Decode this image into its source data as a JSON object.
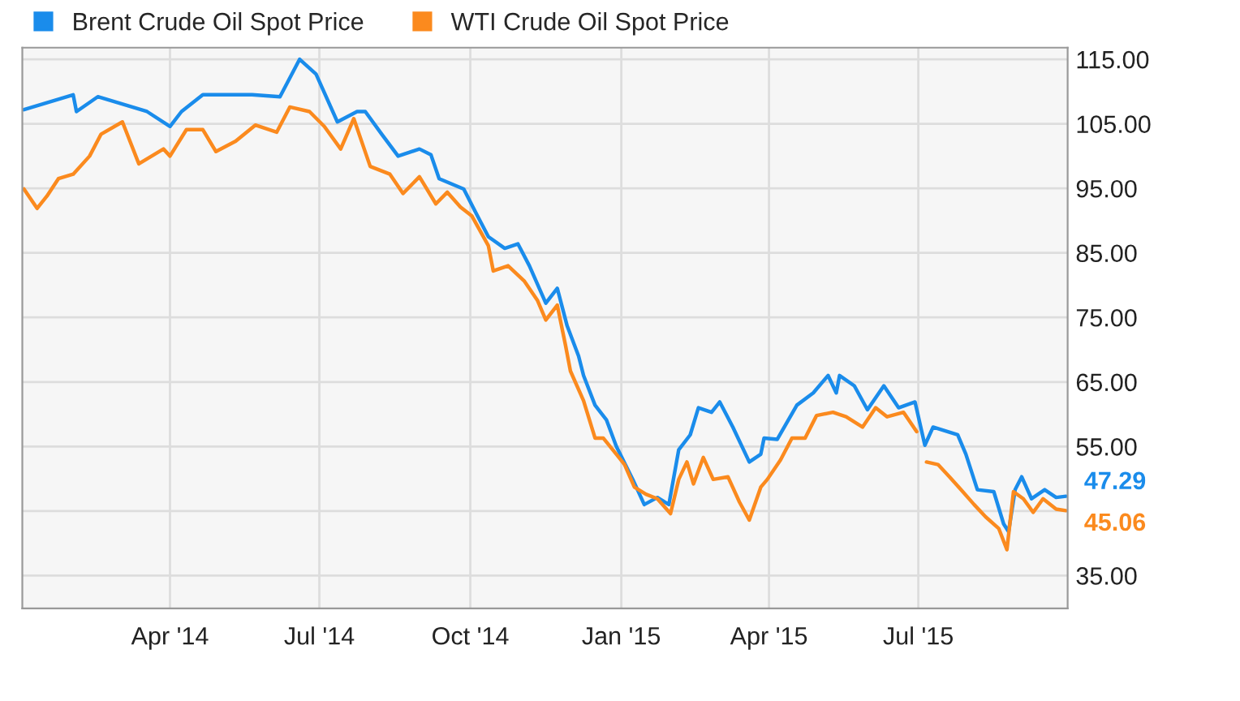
{
  "chart_data": {
    "type": "line",
    "series": [
      {
        "name": "Brent Crude Oil Spot Price",
        "color": "#1a8ceb",
        "x": [
          "2014-01-02",
          "2014-02-01",
          "2014-02-03",
          "2014-02-16",
          "2014-03-18",
          "2014-04-01",
          "2014-04-08",
          "2014-04-21",
          "2014-05-21",
          "2014-06-07",
          "2014-06-19",
          "2014-06-29",
          "2014-07-12",
          "2014-07-24",
          "2014-07-29",
          "2014-08-08",
          "2014-08-18",
          "2014-08-31",
          "2014-09-07",
          "2014-09-12",
          "2014-09-27",
          "2014-10-04",
          "2014-10-12",
          "2014-10-22",
          "2014-10-30",
          "2014-11-06",
          "2014-11-16",
          "2014-11-23",
          "2014-11-29",
          "2014-12-06",
          "2014-12-09",
          "2014-12-16",
          "2014-12-23",
          "2014-12-29",
          "2015-01-08",
          "2015-01-15",
          "2015-01-23",
          "2015-01-30",
          "2015-02-05",
          "2015-02-12",
          "2015-02-17",
          "2015-02-25",
          "2015-03-02",
          "2015-03-10",
          "2015-03-20",
          "2015-03-27",
          "2015-03-29",
          "2015-04-06",
          "2015-04-18",
          "2015-04-28",
          "2015-05-07",
          "2015-05-12",
          "2015-05-14",
          "2015-05-23",
          "2015-05-31",
          "2015-06-10",
          "2015-06-19",
          "2015-06-29",
          "2015-07-05",
          "2015-07-10",
          "2015-07-25",
          "2015-07-30",
          "2015-08-06",
          "2015-08-16",
          "2015-08-22",
          "2015-08-25",
          "2015-08-29",
          "2015-09-02",
          "2015-09-08",
          "2015-09-16",
          "2015-09-23",
          "2015-09-29"
        ],
        "values": [
          107.2,
          109.5,
          106.9,
          109.2,
          106.9,
          104.6,
          106.9,
          109.5,
          109.5,
          109.2,
          115,
          112.7,
          105.3,
          106.9,
          106.9,
          103.4,
          100,
          101.1,
          100.2,
          96.5,
          94.9,
          91.4,
          87.5,
          85.7,
          86.4,
          83,
          77.2,
          79.5,
          73.7,
          69,
          66,
          61.4,
          59.1,
          55,
          49.9,
          46,
          47.1,
          46,
          54.5,
          56.8,
          61,
          60.3,
          61.9,
          58,
          52.6,
          53.8,
          56.3,
          56.1,
          61.4,
          63.3,
          66,
          63.3,
          66,
          64.4,
          60.7,
          64.4,
          61,
          61.9,
          55.2,
          58,
          56.8,
          53.8,
          48.3,
          48,
          43,
          41.8,
          48.3,
          50.3,
          46.9,
          48.3,
          47.1,
          47.29
        ]
      },
      {
        "name": "WTI Crude Oil Spot Price",
        "color": "#fb8a1e",
        "x": [
          "2014-01-02",
          "2014-01-10",
          "2014-01-16",
          "2014-01-23",
          "2014-02-01",
          "2014-02-11",
          "2014-02-18",
          "2014-03-03",
          "2014-03-13",
          "2014-03-28",
          "2014-04-01",
          "2014-04-11",
          "2014-04-21",
          "2014-04-29",
          "2014-05-11",
          "2014-05-23",
          "2014-06-05",
          "2014-06-13",
          "2014-06-25",
          "2014-07-04",
          "2014-07-14",
          "2014-07-22",
          "2014-08-01",
          "2014-08-13",
          "2014-08-21",
          "2014-08-31",
          "2014-09-10",
          "2014-09-17",
          "2014-09-25",
          "2014-10-02",
          "2014-10-12",
          "2014-10-15",
          "2014-10-24",
          "2014-11-03",
          "2014-11-11",
          "2014-11-16",
          "2014-11-23",
          "2014-11-28",
          "2014-12-01",
          "2014-12-09",
          "2014-12-16",
          "2014-12-21",
          "2014-12-29",
          "2015-01-03",
          "2015-01-09",
          "2015-01-16",
          "2015-01-23",
          "2015-01-31",
          "2015-02-05",
          "2015-02-10",
          "2015-02-14",
          "2015-02-20",
          "2015-02-26",
          "2015-03-07",
          "2015-03-14",
          "2015-03-20",
          "2015-03-27",
          "2015-03-31",
          "2015-04-08",
          "2015-04-15",
          "2015-04-23",
          "2015-04-30",
          "2015-05-10",
          "2015-05-18",
          "2015-05-28",
          "2015-06-05",
          "2015-06-12",
          "2015-06-22",
          "2015-06-30",
          "2015-07-03",
          "2015-07-06",
          "2015-07-13",
          "2015-07-20",
          "2015-07-27",
          "2015-08-04",
          "2015-08-11",
          "2015-08-19",
          "2015-08-24",
          "2015-08-28",
          "2015-09-03",
          "2015-09-09",
          "2015-09-15",
          "2015-09-23",
          "2015-09-29"
        ],
        "values": [
          94.9,
          91.9,
          93.8,
          96.5,
          97.2,
          100,
          103.4,
          105.3,
          98.8,
          101.1,
          100,
          104.1,
          104.1,
          100.7,
          102.3,
          104.8,
          103.7,
          107.6,
          106.9,
          104.6,
          101.1,
          105.8,
          98.4,
          97.2,
          94.2,
          96.8,
          92.6,
          94.4,
          92.1,
          90.7,
          86.1,
          82.2,
          83,
          80.6,
          77.6,
          74.6,
          76.9,
          70.7,
          66.7,
          62.1,
          56.3,
          56.3,
          53.8,
          52.2,
          48.7,
          47.6,
          46.9,
          44.6,
          49.9,
          52.6,
          49.2,
          53.3,
          49.9,
          50.3,
          46.4,
          43.6,
          48.7,
          49.9,
          52.9,
          56.3,
          56.3,
          59.8,
          60.3,
          59.6,
          58,
          61,
          59.6,
          60.3,
          57.3,
          null,
          52.6,
          52.2,
          50.3,
          48.3,
          46,
          44.1,
          42.3,
          39,
          48,
          46.9,
          44.8,
          46.9,
          45.3,
          45.06
        ]
      }
    ],
    "xlim": [
      "2014-01-01",
      "2015-09-30"
    ],
    "xticks": [
      {
        "value": "2014-04-01",
        "label": "Apr '14"
      },
      {
        "value": "2014-07-01",
        "label": "Jul '14"
      },
      {
        "value": "2014-10-01",
        "label": "Oct '14"
      },
      {
        "value": "2015-01-01",
        "label": "Jan '15"
      },
      {
        "value": "2015-04-01",
        "label": "Apr '15"
      },
      {
        "value": "2015-07-01",
        "label": "Jul '15"
      }
    ],
    "ylim": [
      29.9,
      116.8
    ],
    "yticks": [
      {
        "value": 35,
        "label": "35.00"
      },
      {
        "value": 45,
        "label": null
      },
      {
        "value": 55,
        "label": "55.00"
      },
      {
        "value": 65,
        "label": "65.00"
      },
      {
        "value": 75,
        "label": "75.00"
      },
      {
        "value": 85,
        "label": "85.00"
      },
      {
        "value": 95,
        "label": "95.00"
      },
      {
        "value": 105,
        "label": "105.00"
      },
      {
        "value": 115,
        "label": "115.00"
      }
    ],
    "annotations": [
      {
        "text": "47.29",
        "x": "2015-09-29",
        "y": 47.29
      },
      {
        "text": "45.06",
        "x": "2015-09-29",
        "y": 45.06
      }
    ],
    "grid": true,
    "legend": "top left",
    "marker": "none",
    "line_style": "solid"
  }
}
